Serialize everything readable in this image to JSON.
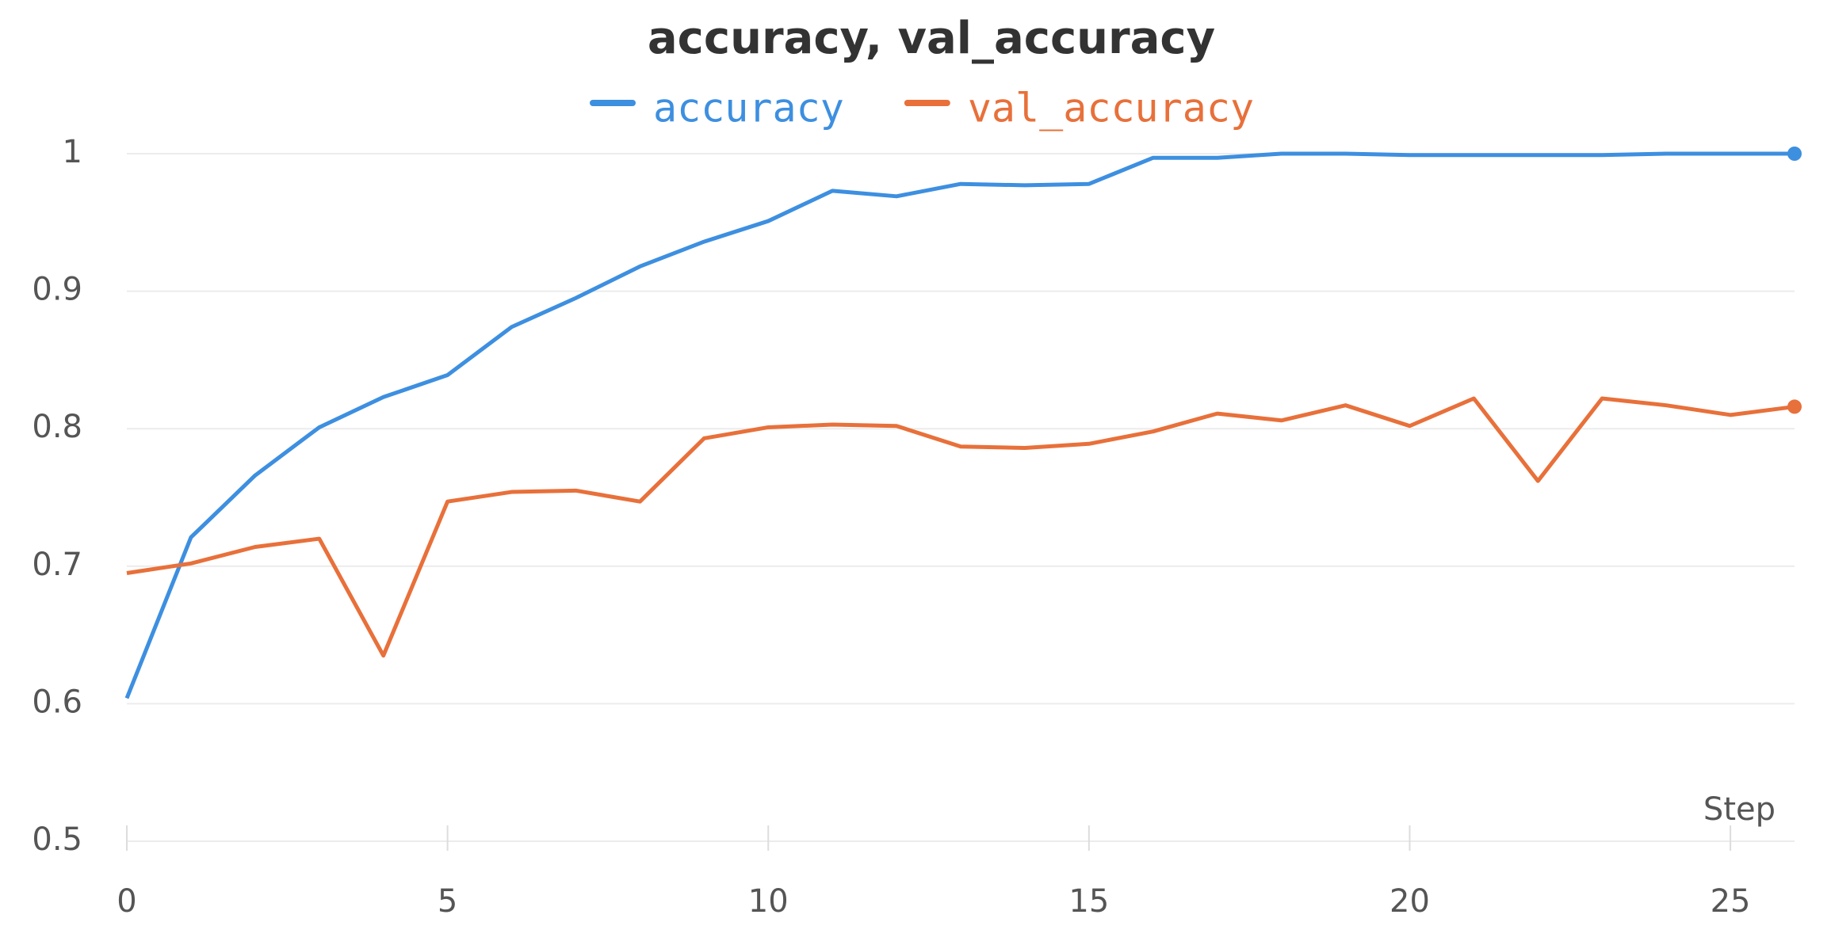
{
  "chart_data": {
    "type": "line",
    "title": "accuracy, val_accuracy",
    "xlabel": "Step",
    "x": [
      0,
      1,
      2,
      3,
      4,
      5,
      6,
      7,
      8,
      9,
      10,
      11,
      12,
      13,
      14,
      15,
      16,
      17,
      18,
      19,
      20,
      21,
      22,
      23,
      24,
      25,
      26
    ],
    "series": [
      {
        "name": "accuracy",
        "color": "#3d8fe0",
        "values": [
          0.604,
          0.721,
          0.766,
          0.801,
          0.823,
          0.839,
          0.874,
          0.895,
          0.918,
          0.936,
          0.951,
          0.973,
          0.969,
          0.978,
          0.977,
          0.978,
          0.997,
          0.997,
          1.0,
          1.0,
          0.999,
          0.999,
          0.999,
          0.999,
          1.0,
          1.0,
          1.0
        ]
      },
      {
        "name": "val_accuracy",
        "color": "#e8703a",
        "values": [
          0.695,
          0.702,
          0.714,
          0.72,
          0.635,
          0.747,
          0.754,
          0.755,
          0.747,
          0.793,
          0.801,
          0.803,
          0.802,
          0.787,
          0.786,
          0.789,
          0.798,
          0.811,
          0.806,
          0.817,
          0.802,
          0.822,
          0.762,
          0.822,
          0.817,
          0.81,
          0.816
        ]
      }
    ],
    "xlim": [
      0,
      26
    ],
    "ylim": [
      0.5,
      1
    ],
    "xticks": [
      0,
      5,
      10,
      15,
      20,
      25
    ],
    "yticks": [
      0.5,
      0.6,
      0.7,
      0.8,
      0.9,
      1
    ],
    "grid": true
  }
}
